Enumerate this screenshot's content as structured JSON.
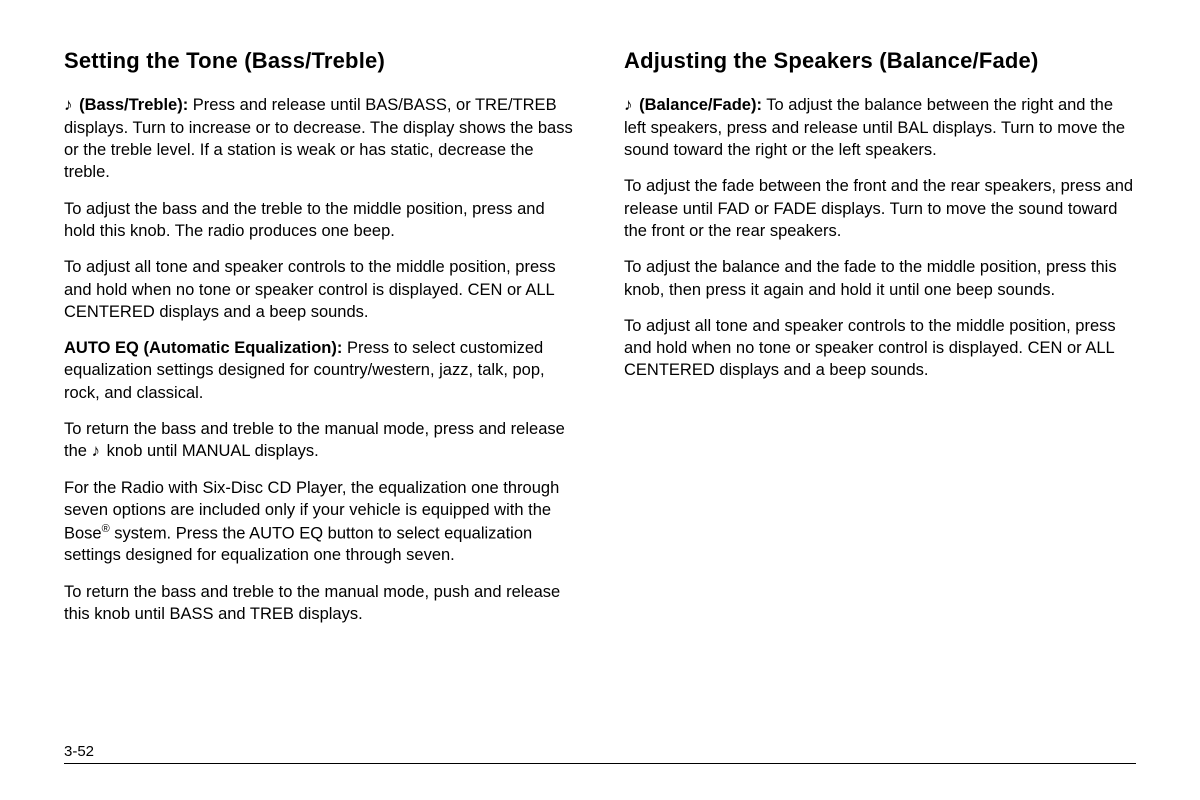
{
  "left": {
    "heading": "Setting the Tone (Bass/Treble)",
    "p1_icon": "♪",
    "p1_bold": "(Bass/Treble):",
    "p1_rest": " Press and release until BAS/BASS, or TRE/TREB displays. Turn to increase or to decrease. The display shows the bass or the treble level. If a station is weak or has static, decrease the treble.",
    "p2": "To adjust the bass and the treble to the middle position, press and hold this knob. The radio produces one beep.",
    "p3": "To adjust all tone and speaker controls to the middle position, press and hold when no tone or speaker control is displayed. CEN or ALL CENTERED displays and a beep sounds.",
    "p4_bold": "AUTO EQ (Automatic Equalization):",
    "p4_rest": " Press to select customized equalization settings designed for country/western, jazz, talk, pop, rock, and classical.",
    "p5_a": "To return the bass and treble to the manual mode, press and release the ",
    "p5_icon": "♪",
    "p5_b": " knob until MANUAL displays.",
    "p6_a": "For the Radio with Six-Disc CD Player, the equalization one through seven options are included only if your vehicle is equipped with the Bose",
    "p6_sup": "®",
    "p6_b": " system. Press the AUTO EQ button to select equalization settings designed for equalization one through seven.",
    "p7": "To return the bass and treble to the manual mode, push and release this knob until BASS and TREB displays."
  },
  "right": {
    "heading": "Adjusting the Speakers (Balance/Fade)",
    "p1_icon": "♪",
    "p1_bold": "(Balance/Fade):",
    "p1_rest": " To adjust the balance between the right and the left speakers, press and release until BAL displays. Turn to move the sound toward the right or the left speakers.",
    "p2": "To adjust the fade between the front and the rear speakers, press and release until FAD or FADE displays. Turn to move the sound toward the front or the rear speakers.",
    "p3": "To adjust the balance and the fade to the middle position, press this knob, then press it again and hold it until one beep sounds.",
    "p4": "To adjust all tone and speaker controls to the middle position, press and hold when no tone or speaker control is displayed. CEN or ALL CENTERED displays and a beep sounds."
  },
  "page_number": "3-52"
}
